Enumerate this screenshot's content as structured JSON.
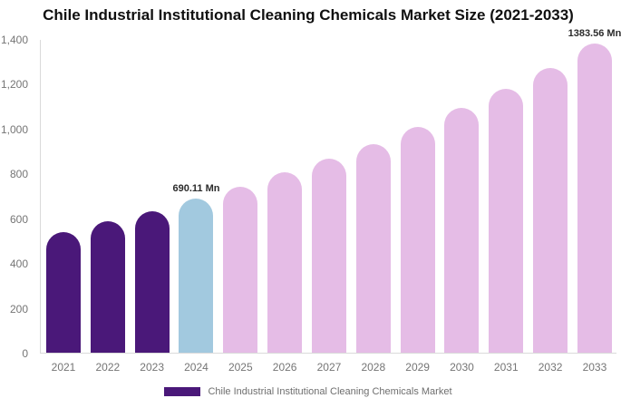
{
  "header": {
    "title": "Chile Industrial Institutional Cleaning Chemicals Market Size (2021-2033)"
  },
  "colors": {
    "historical_bar": "#4A1879",
    "highlight_bar": "#A2C9DF",
    "forecast_bar": "#E5BCE6",
    "axis_line": "#DADADA",
    "axis_text": "#757575",
    "data_label_text": "#2B2B2B",
    "title_text": "#101010"
  },
  "legend": {
    "label": "Chile Industrial Institutional Cleaning Chemicals Market",
    "swatch_color": "#4A1879"
  },
  "chart_data": {
    "type": "bar",
    "title": "Chile Industrial Institutional Cleaning Chemicals Market Size (2021-2033)",
    "categories": [
      "2021",
      "2022",
      "2023",
      "2024",
      "2025",
      "2026",
      "2027",
      "2028",
      "2029",
      "2030",
      "2031",
      "2032",
      "2033"
    ],
    "values": [
      540,
      588,
      634,
      690.11,
      741,
      806,
      868,
      933,
      1009,
      1095,
      1180,
      1275,
      1383.56
    ],
    "bar_segments": [
      "historical",
      "historical",
      "historical",
      "highlight",
      "forecast",
      "forecast",
      "forecast",
      "forecast",
      "forecast",
      "forecast",
      "forecast",
      "forecast",
      "forecast"
    ],
    "data_labels": {
      "2024": "690.11 Mn",
      "2033": "1383.56 Mn"
    },
    "xlabel": "",
    "ylabel": "",
    "ylim": [
      0,
      1400
    ],
    "yticks": [
      0,
      200,
      400,
      600,
      800,
      1000,
      1200,
      1400
    ],
    "ytick_labels": [
      "0",
      "200",
      "400",
      "600",
      "800",
      "1,000",
      "1,200",
      "1,400"
    ],
    "grid": false,
    "legend_entries": [
      "Chile Industrial Institutional Cleaning Chemicals Market"
    ],
    "legend_position": "bottom",
    "bar_shape": "rounded-top"
  }
}
